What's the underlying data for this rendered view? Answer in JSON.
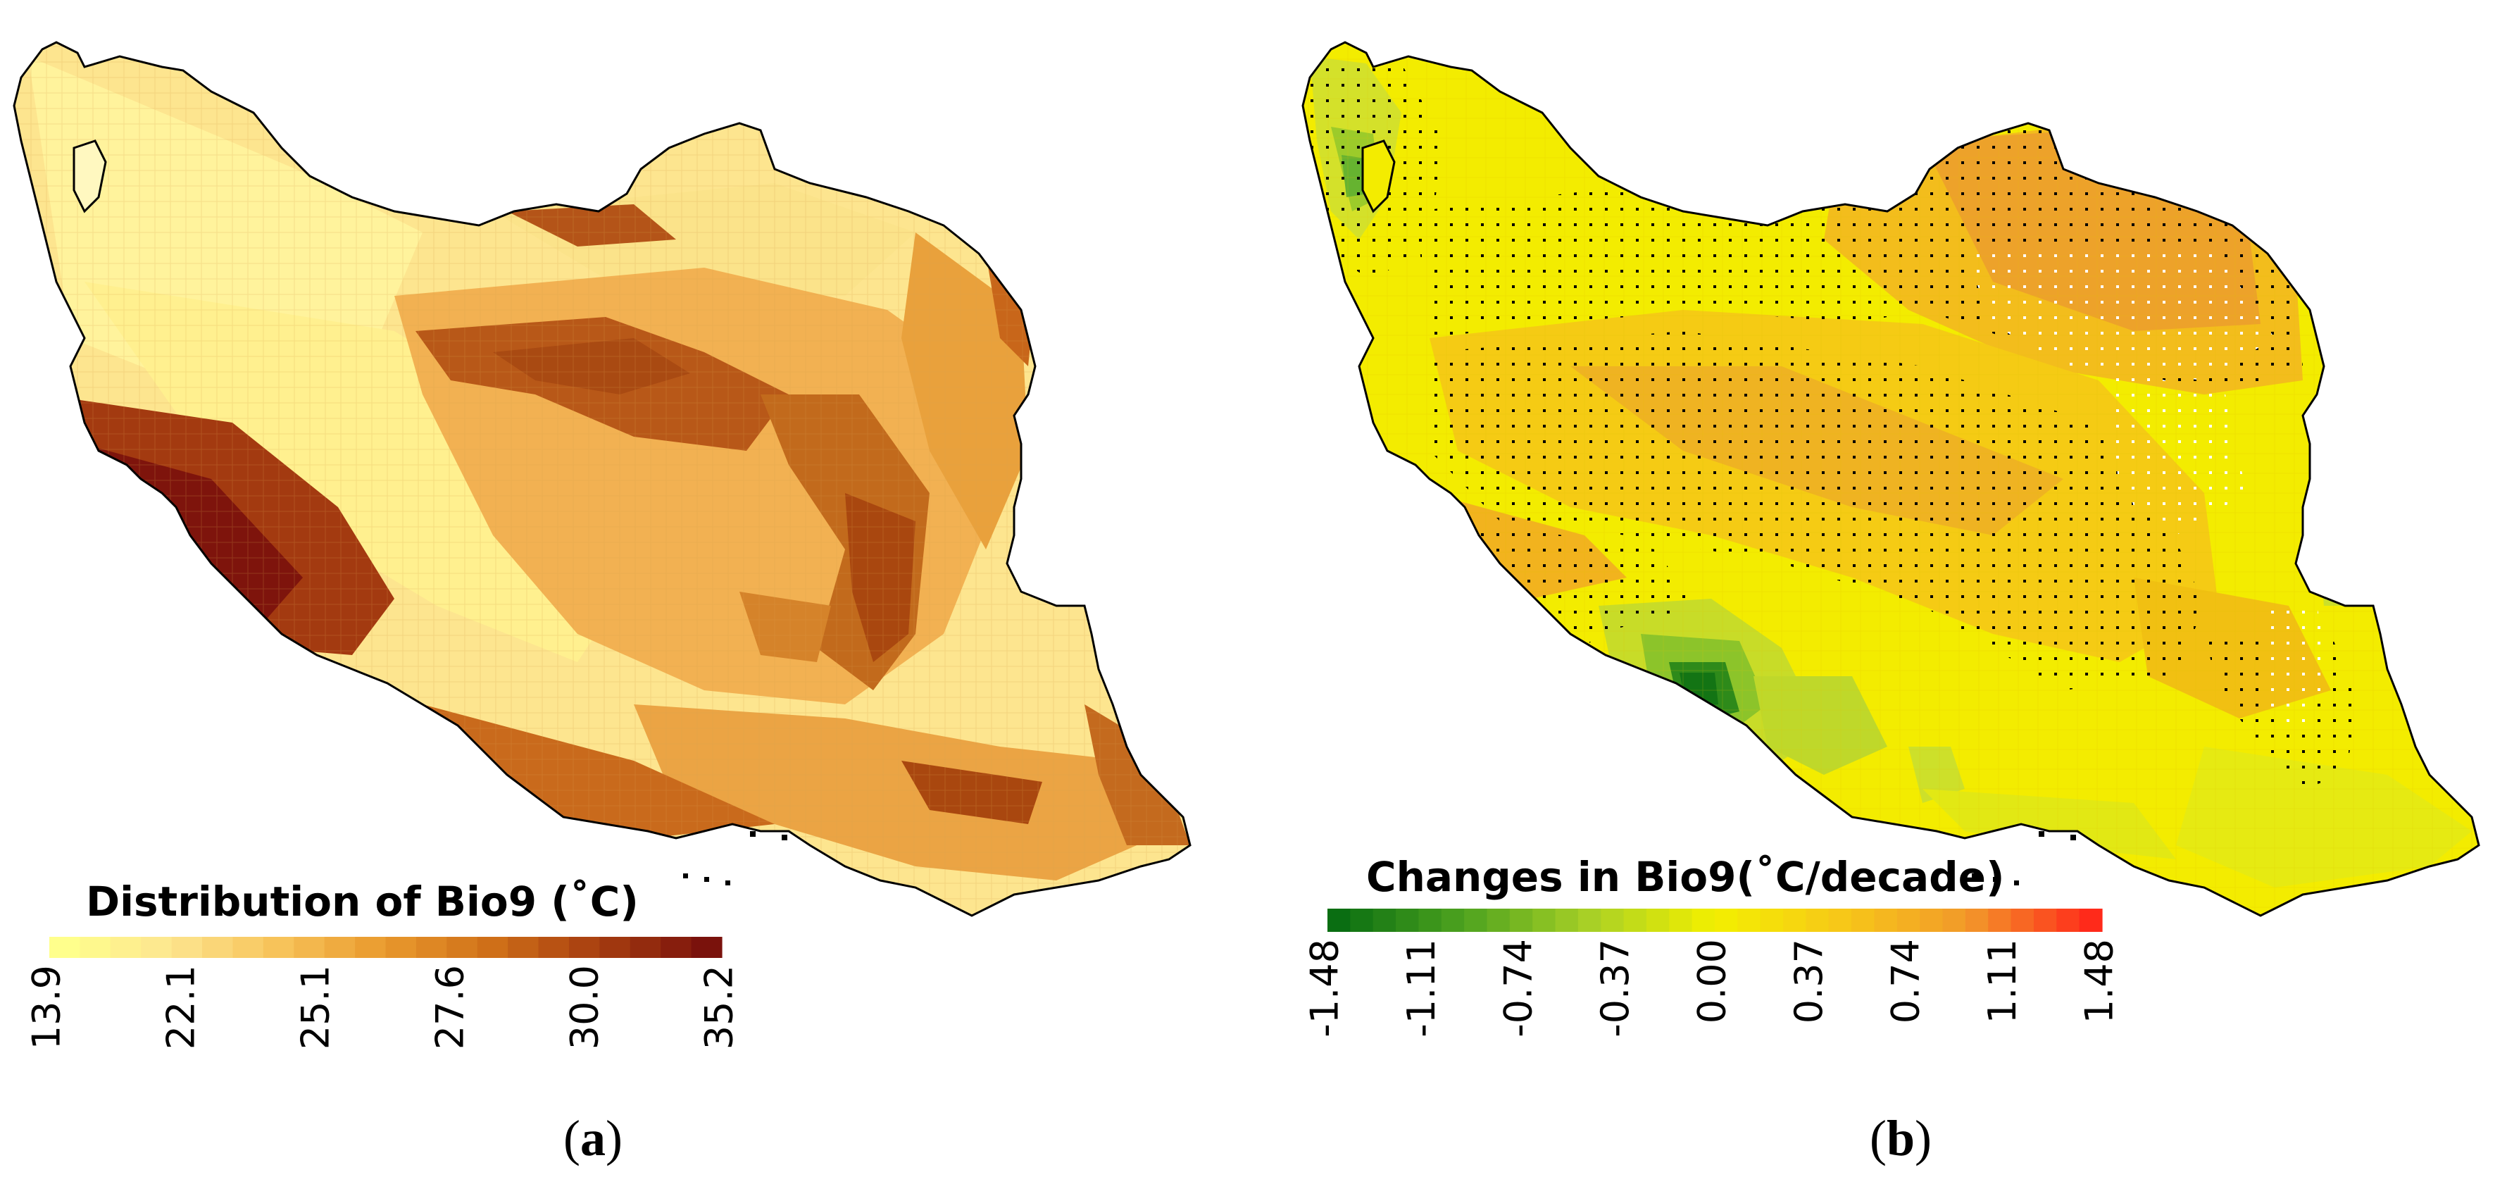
{
  "panel_a": {
    "label_letter": "a",
    "legend_title": "Distribution of Bio9 (˚C)",
    "colors": {
      "ramp": [
        "#ffff8c",
        "#fde58f",
        "#f7c35a",
        "#e9992d",
        "#cf6f18",
        "#a63d10",
        "#7a120c"
      ],
      "border": "#000000"
    },
    "legend": {
      "tick_labels": [
        "13.9",
        "22.1",
        "25.1",
        "27.6",
        "30.0",
        "35.2"
      ],
      "bin_count": 22
    }
  },
  "panel_b": {
    "label_letter": "b",
    "legend_title": "Changes in Bio9(˚C/decade)",
    "colors": {
      "ramp": [
        "#0a6e12",
        "#4ea31f",
        "#a8d026",
        "#f3f000",
        "#f7c818",
        "#f29a2a",
        "#ff2a1a"
      ],
      "border": "#000000",
      "stipple_dark": "#000000",
      "stipple_light": "#ffffff"
    },
    "legend": {
      "tick_labels": [
        "-1.48",
        "-1.11",
        "-0.74",
        "-0.37",
        "0.00",
        "0.37",
        "0.74",
        "1.11",
        "1.48"
      ],
      "bin_count": 34
    }
  }
}
